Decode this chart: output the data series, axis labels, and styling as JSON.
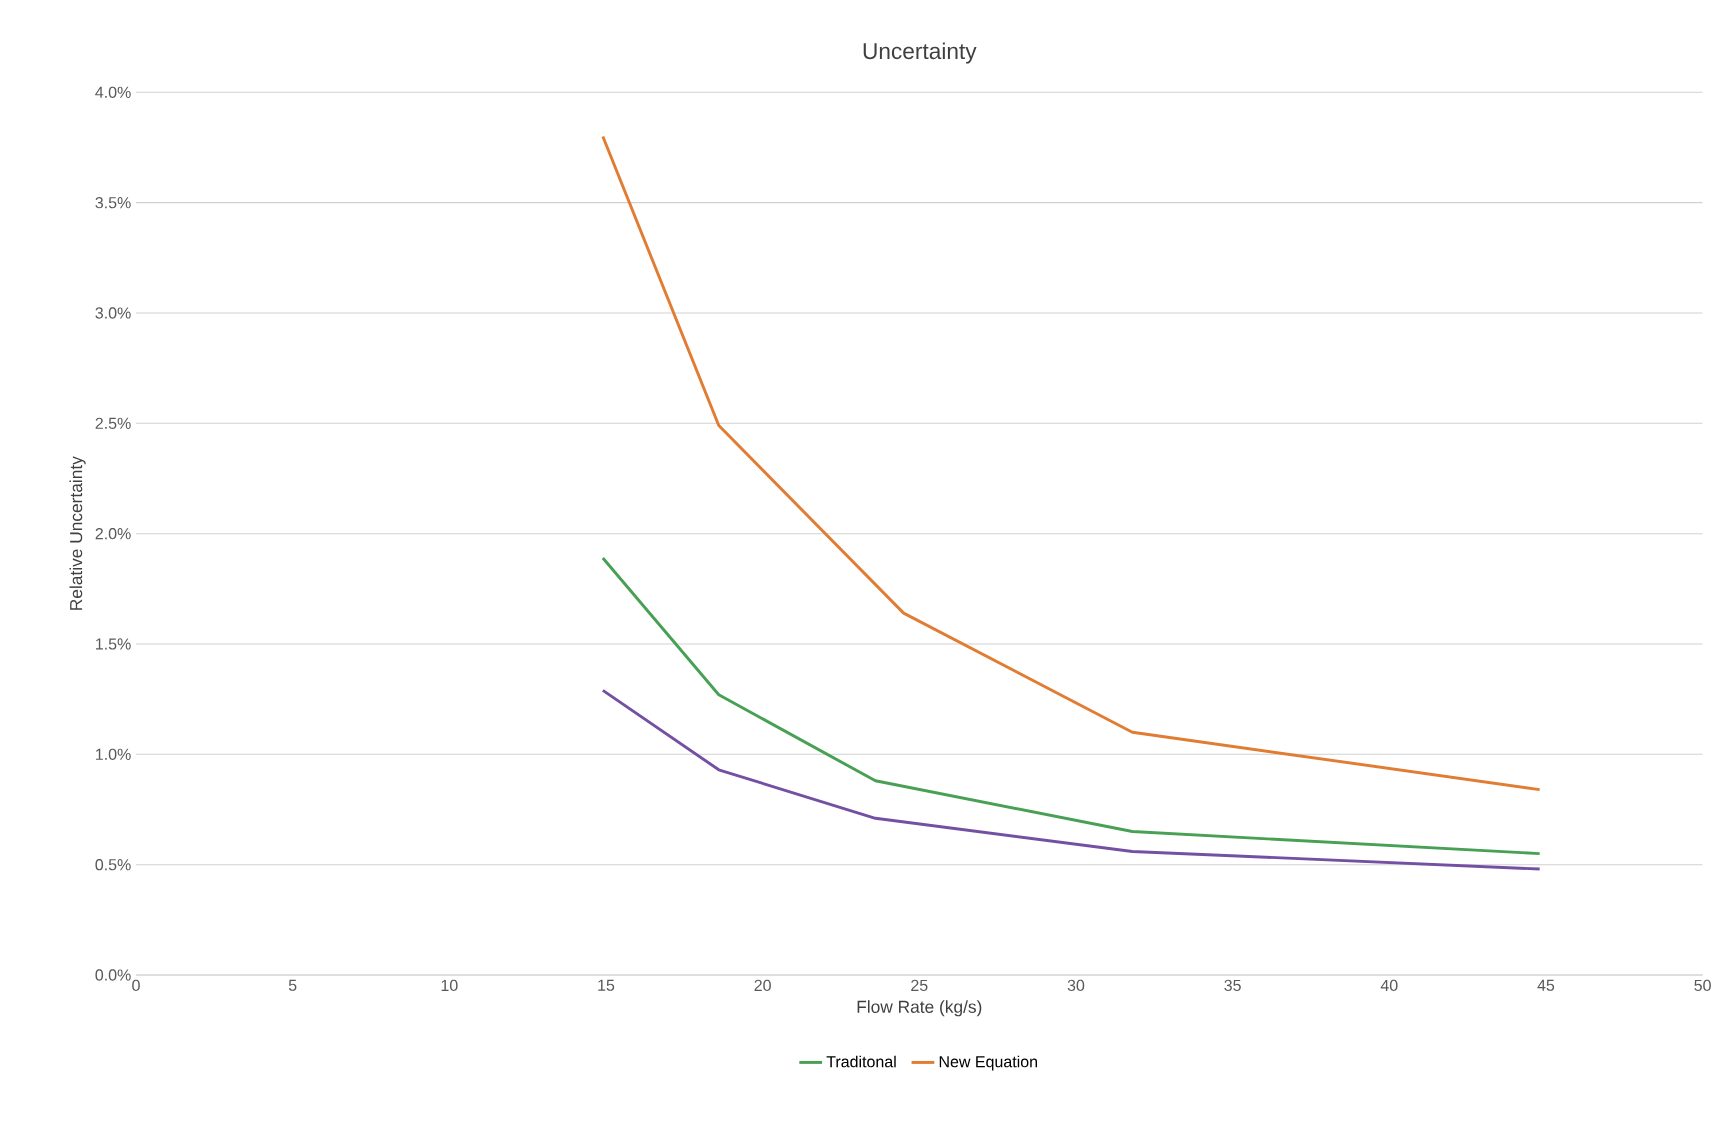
{
  "chart_data": {
    "type": "line",
    "title": "Uncertainty",
    "xlabel": "Flow Rate (kg/s)",
    "ylabel": "Relative Uncertainty",
    "series": [
      {
        "name": "Traditonal",
        "color": "#48a055",
        "x": [
          14.9,
          18.6,
          23.6,
          31.8,
          44.8
        ],
        "values": [
          1.89,
          1.27,
          0.88,
          0.65,
          0.55
        ]
      },
      {
        "name": "New Equation",
        "color": "#e17c33",
        "x": [
          14.9,
          18.6,
          24.5,
          31.8,
          44.8
        ],
        "values": [
          3.8,
          2.49,
          1.64,
          1.1,
          0.84
        ]
      },
      {
        "color": "#7450a3",
        "x": [
          14.9,
          18.6,
          23.6,
          31.8,
          44.8
        ],
        "values": [
          1.29,
          0.93,
          0.71,
          0.56,
          0.48
        ]
      }
    ],
    "xlim": [
      0,
      50
    ],
    "xticks": [
      0,
      5,
      10,
      15,
      20,
      25,
      30,
      35,
      40,
      45,
      50
    ],
    "ylim": [
      0,
      4
    ],
    "yticks": [
      {
        "value": 0,
        "label": "0.0%"
      },
      {
        "value": 0.5,
        "label": "0.5%"
      },
      {
        "value": 1,
        "label": "1.0%"
      },
      {
        "value": 1.5,
        "label": "1.5%"
      },
      {
        "value": 2,
        "label": "2.0%"
      },
      {
        "value": 2.5,
        "label": "2.5%"
      },
      {
        "value": 3,
        "label": "3.0%"
      },
      {
        "value": 3.5,
        "label": "3.5%"
      },
      {
        "value": 4,
        "label": "4.0%"
      }
    ],
    "grid": "y",
    "legend": "bottom",
    "marker": "none",
    "line_style": "solid"
  }
}
